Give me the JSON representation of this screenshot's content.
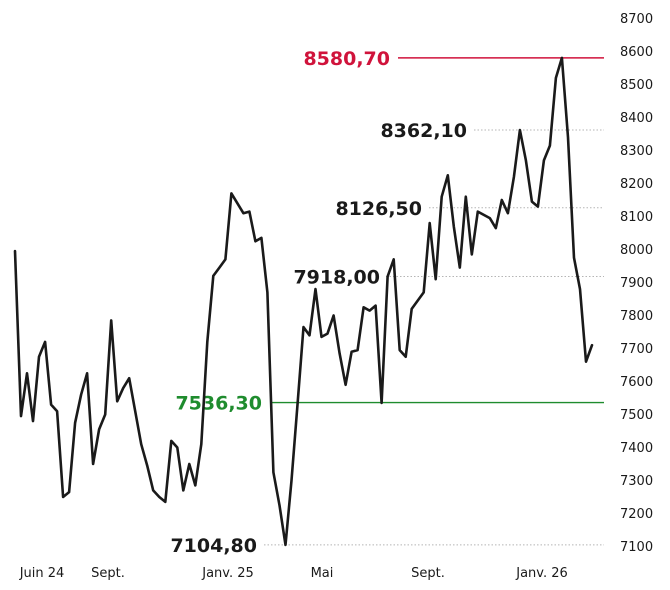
{
  "chart_data": {
    "type": "line",
    "title": "",
    "xlabel": "",
    "ylabel": "",
    "ylim": [
      7100,
      8700
    ],
    "yticks": [
      7100,
      7200,
      7300,
      7400,
      7500,
      7600,
      7700,
      7800,
      7900,
      8000,
      8100,
      8200,
      8300,
      8400,
      8500,
      8600,
      8700
    ],
    "x_tick_labels": [
      "Juin 24",
      "Sept.",
      "Janv. 25",
      "Mai",
      "Sept.",
      "Janv. 26"
    ],
    "colors": {
      "line": "#1a1a1a",
      "high": "#d0133b",
      "low": "#1f8c2e",
      "grid": "#b5b5b5"
    },
    "series": [
      {
        "values": [
          7995,
          7495,
          7625,
          7480,
          7675,
          7720,
          7530,
          7510,
          7250,
          7265,
          7475,
          7560,
          7625,
          7350,
          7455,
          7500,
          7785,
          7540,
          7580,
          7610,
          7510,
          7410,
          7345,
          7270,
          7250,
          7235,
          7420,
          7400,
          7270,
          7350,
          7285,
          7410,
          7720,
          7920,
          7945,
          7970,
          8170,
          8140,
          8110,
          8115,
          8025,
          8035,
          7870,
          7325,
          7225,
          7105,
          7300,
          7530,
          7765,
          7740,
          7880,
          7735,
          7745,
          7800,
          7685,
          7590,
          7690,
          7695,
          7825,
          7815,
          7830,
          7535,
          7918,
          7970,
          7695,
          7675,
          7820,
          7845,
          7870,
          8080,
          7910,
          8160,
          8225,
          8070,
          7945,
          8160,
          7985,
          8115,
          8105,
          8095,
          8065,
          8150,
          8110,
          8220,
          8362.1,
          8270,
          8145,
          8130,
          8270,
          8315,
          8520,
          8580.7,
          8340,
          7975,
          7880,
          7660,
          7710
        ]
      }
    ],
    "annotations": [
      {
        "label": "8580,70",
        "value": 8580.7,
        "kind": "high"
      },
      {
        "label": "8362,10",
        "value": 8362.1,
        "kind": "level"
      },
      {
        "label": "8126,50",
        "value": 8126.5,
        "kind": "level"
      },
      {
        "label": "7918,00",
        "value": 7918.0,
        "kind": "level"
      },
      {
        "label": "7536,30",
        "value": 7536.3,
        "kind": "low-line"
      },
      {
        "label": "7104,80",
        "value": 7104.8,
        "kind": "level"
      }
    ]
  }
}
